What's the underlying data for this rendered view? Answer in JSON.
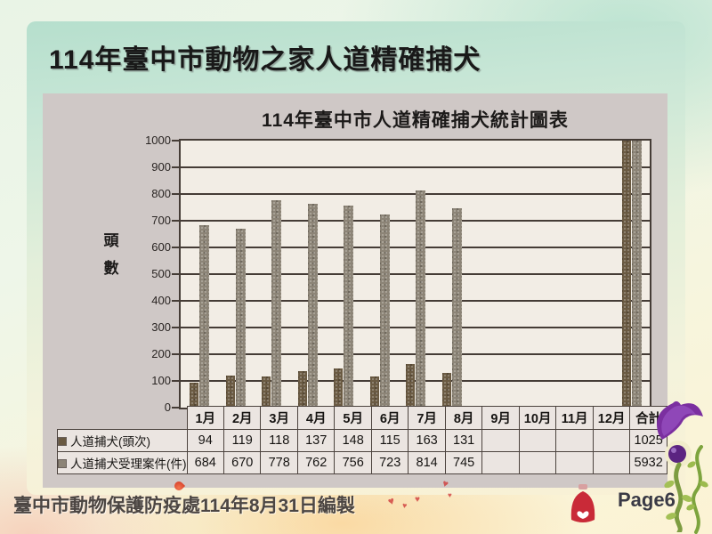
{
  "slide": {
    "title": "114年臺中市動物之家人道精確捕犬",
    "footer": "臺中市動物保護防疫處114年8月31日編製",
    "page_label": "Page6"
  },
  "chart_data": {
    "type": "bar",
    "title": "114年臺中市人道精確捕犬統計圖表",
    "xlabel": "",
    "ylabel": "頭數",
    "ylim": [
      0,
      1000
    ],
    "ytick_step": 100,
    "grid": true,
    "legend_position": "table-row-labels",
    "categories": [
      "1月",
      "2月",
      "3月",
      "4月",
      "5月",
      "6月",
      "7月",
      "8月",
      "9月",
      "10月",
      "11月",
      "12月",
      "合計"
    ],
    "series": [
      {
        "name": "人道捕犬(頭次)",
        "color": "#6a5a42",
        "values": [
          94,
          119,
          118,
          137,
          148,
          115,
          163,
          131,
          null,
          null,
          null,
          null,
          1025
        ]
      },
      {
        "name": "人道捕犬受理案件(件)",
        "color": "#8c8476",
        "values": [
          684,
          670,
          778,
          762,
          756,
          723,
          814,
          745,
          null,
          null,
          null,
          null,
          5932
        ]
      }
    ],
    "note_clipped_bars": "合計 bars exceed axis max and are clipped at 1000"
  },
  "colors": {
    "chart_panel_bg": "#cfc8c6",
    "plot_bg": "#f2ede5",
    "grid_line": "#453c36",
    "slide_panel_top": "#b6dfcd",
    "slide_panel_bottom": "#f9f1d5",
    "table_cell_bg": "#ebe5e1",
    "decor_flower_purple": "#7b2fa0",
    "decor_heart_red": "#cf3b3b"
  },
  "icons": {
    "legend_square_1": "solid brown square",
    "legend_square_2": "solid taupe square"
  }
}
